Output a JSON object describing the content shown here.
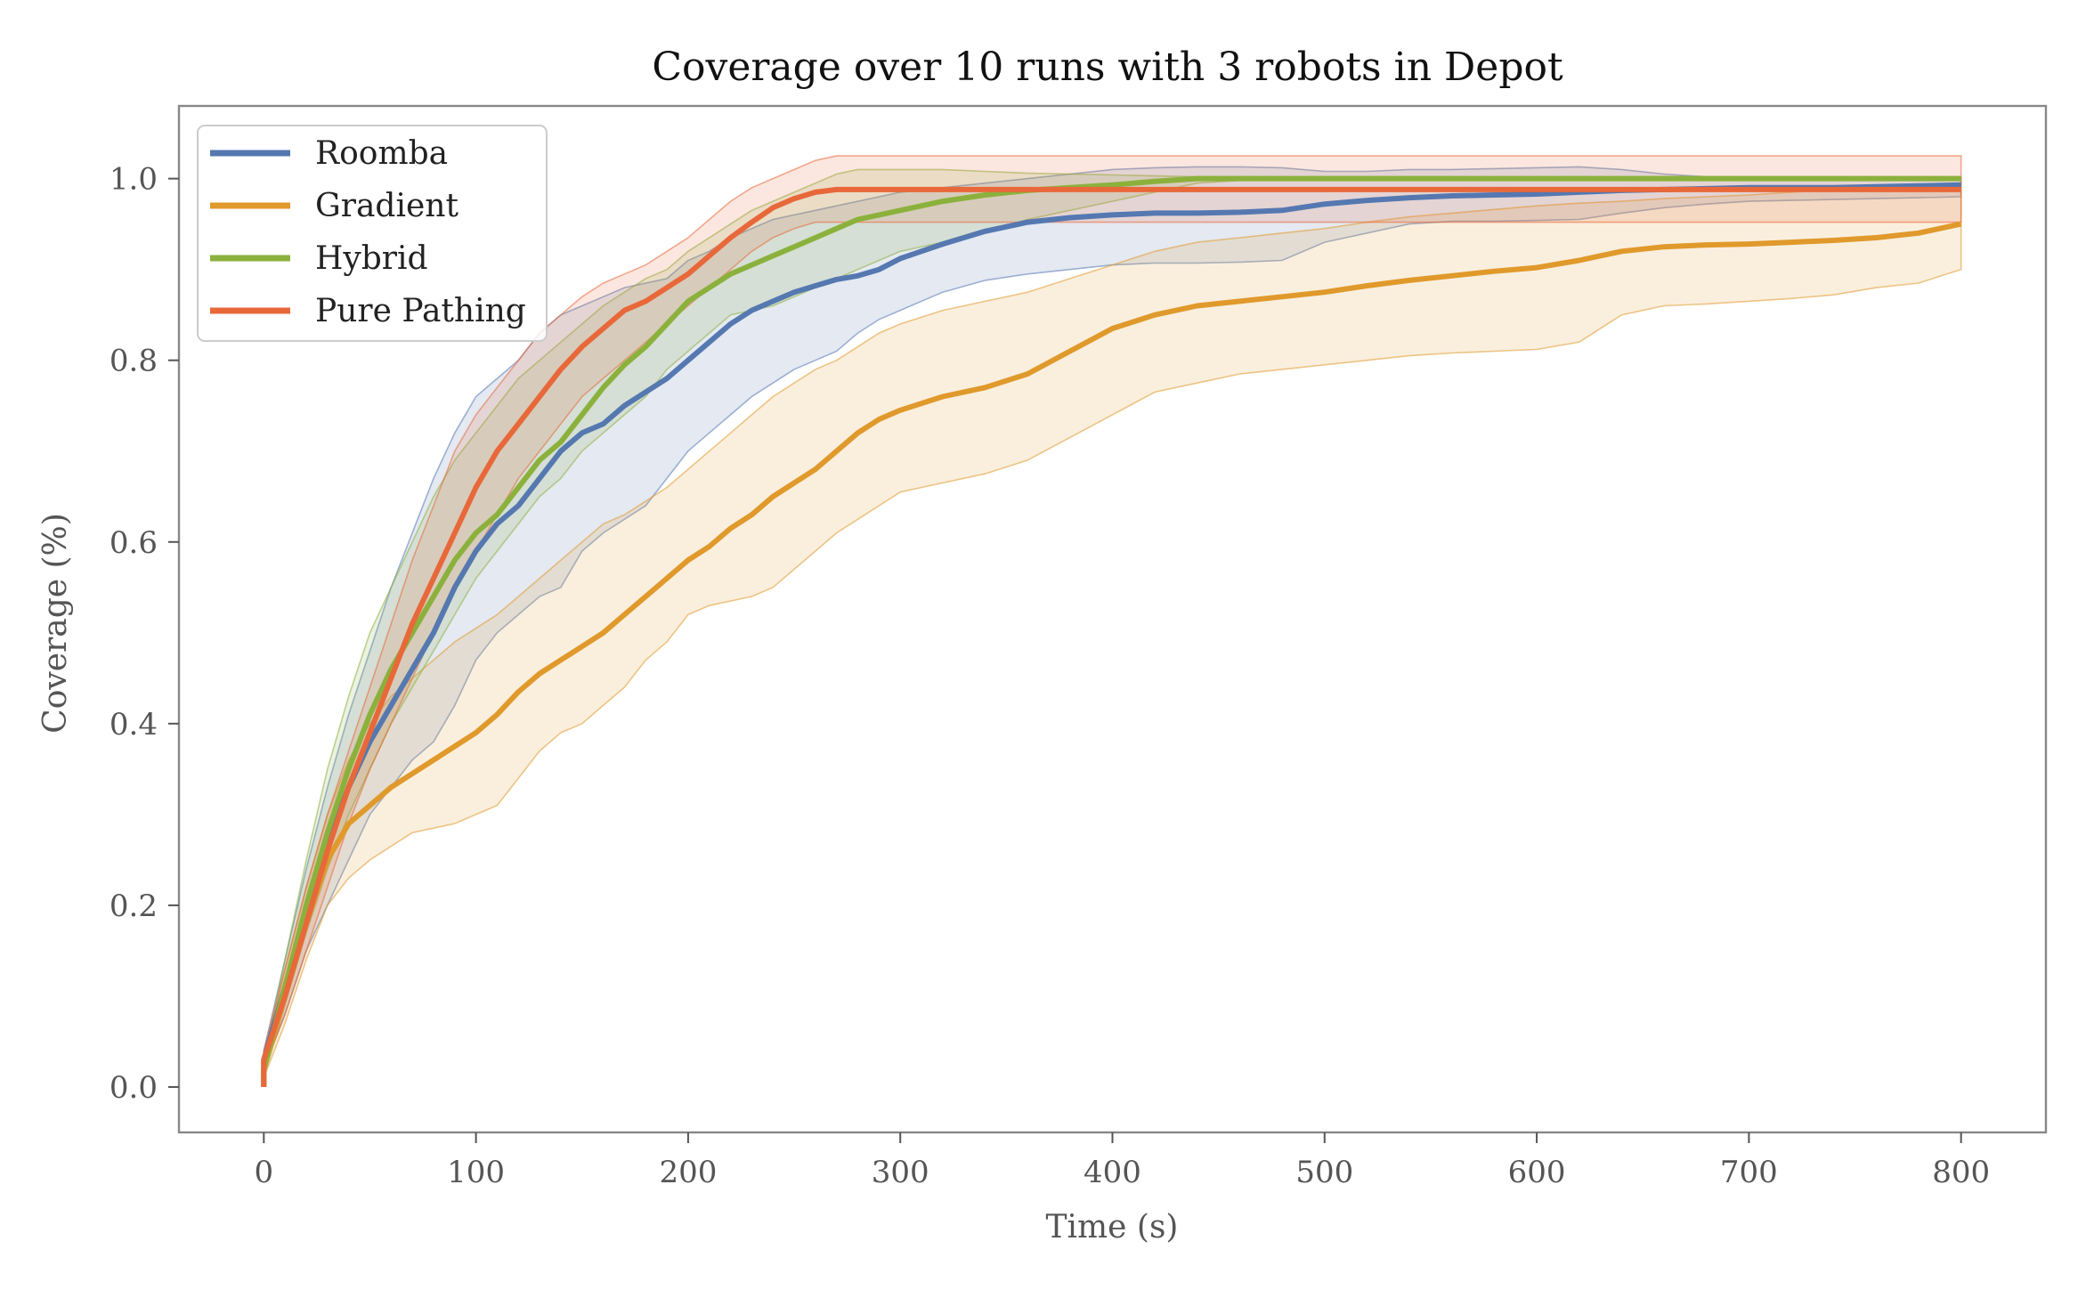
{
  "chart_data": {
    "type": "line",
    "title": "Coverage over 10 runs with 3 robots in Depot",
    "xlabel": "Time (s)",
    "ylabel": "Coverage (%)",
    "xlim": [
      -40,
      840
    ],
    "ylim": [
      -0.05,
      1.08
    ],
    "xticks": [
      0,
      100,
      200,
      300,
      400,
      500,
      600,
      700,
      800
    ],
    "yticks": [
      0.0,
      0.2,
      0.4,
      0.6,
      0.8,
      1.0
    ],
    "xtick_labels": [
      "0",
      "100",
      "200",
      "300",
      "400",
      "500",
      "600",
      "700",
      "800"
    ],
    "ytick_labels": [
      "0.0",
      "0.2",
      "0.4",
      "0.6",
      "0.8",
      "1.0"
    ],
    "grid": false,
    "legend_position": "top-left",
    "x": [
      0,
      10,
      20,
      30,
      40,
      50,
      60,
      70,
      80,
      90,
      100,
      110,
      120,
      130,
      140,
      150,
      160,
      170,
      180,
      190,
      200,
      210,
      220,
      230,
      240,
      250,
      260,
      270,
      280,
      290,
      300,
      320,
      340,
      360,
      380,
      400,
      420,
      440,
      460,
      480,
      500,
      520,
      540,
      560,
      580,
      600,
      620,
      640,
      660,
      680,
      700,
      720,
      740,
      760,
      780,
      800
    ],
    "series": [
      {
        "name": "Roomba",
        "color": "#5578b0",
        "mean": [
          0.03,
          0.11,
          0.19,
          0.27,
          0.33,
          0.38,
          0.42,
          0.46,
          0.5,
          0.55,
          0.59,
          0.62,
          0.64,
          0.67,
          0.7,
          0.72,
          0.73,
          0.75,
          0.765,
          0.78,
          0.8,
          0.82,
          0.84,
          0.855,
          0.865,
          0.875,
          0.882,
          0.889,
          0.893,
          0.9,
          0.912,
          0.928,
          0.942,
          0.952,
          0.957,
          0.96,
          0.962,
          0.962,
          0.963,
          0.965,
          0.972,
          0.976,
          0.979,
          0.981,
          0.982,
          0.983,
          0.985,
          0.987,
          0.988,
          0.989,
          0.99,
          0.99,
          0.99,
          0.991,
          0.992,
          0.993
        ],
        "upper": [
          0.04,
          0.14,
          0.24,
          0.33,
          0.41,
          0.48,
          0.55,
          0.61,
          0.67,
          0.72,
          0.76,
          0.78,
          0.8,
          0.83,
          0.85,
          0.86,
          0.87,
          0.88,
          0.885,
          0.89,
          0.91,
          0.92,
          0.935,
          0.945,
          0.955,
          0.96,
          0.965,
          0.97,
          0.975,
          0.98,
          0.985,
          0.99,
          0.995,
          1.0,
          1.005,
          1.01,
          1.012,
          1.013,
          1.013,
          1.012,
          1.008,
          1.008,
          1.01,
          1.01,
          1.011,
          1.012,
          1.013,
          1.01,
          1.005,
          1.002,
          1.0,
          1.0,
          1.0,
          1.0,
          1.0,
          1.0
        ],
        "lower": [
          0.02,
          0.08,
          0.15,
          0.2,
          0.25,
          0.3,
          0.33,
          0.36,
          0.38,
          0.42,
          0.47,
          0.5,
          0.52,
          0.54,
          0.55,
          0.59,
          0.61,
          0.625,
          0.64,
          0.67,
          0.7,
          0.72,
          0.74,
          0.76,
          0.775,
          0.79,
          0.8,
          0.81,
          0.83,
          0.845,
          0.855,
          0.875,
          0.888,
          0.895,
          0.9,
          0.905,
          0.907,
          0.907,
          0.908,
          0.91,
          0.93,
          0.94,
          0.95,
          0.953,
          0.953,
          0.954,
          0.955,
          0.962,
          0.968,
          0.972,
          0.975,
          0.976,
          0.977,
          0.978,
          0.979,
          0.98
        ]
      },
      {
        "name": "Gradient",
        "color": "#e0992b",
        "mean": [
          0.02,
          0.1,
          0.18,
          0.25,
          0.29,
          0.31,
          0.33,
          0.345,
          0.36,
          0.375,
          0.39,
          0.41,
          0.435,
          0.455,
          0.47,
          0.485,
          0.5,
          0.52,
          0.54,
          0.56,
          0.58,
          0.595,
          0.615,
          0.63,
          0.65,
          0.665,
          0.68,
          0.7,
          0.72,
          0.735,
          0.745,
          0.76,
          0.77,
          0.785,
          0.81,
          0.835,
          0.85,
          0.86,
          0.865,
          0.87,
          0.875,
          0.882,
          0.888,
          0.893,
          0.898,
          0.902,
          0.91,
          0.92,
          0.925,
          0.927,
          0.928,
          0.93,
          0.932,
          0.935,
          0.94,
          0.95
        ],
        "upper": [
          0.03,
          0.13,
          0.22,
          0.3,
          0.36,
          0.4,
          0.43,
          0.45,
          0.47,
          0.49,
          0.505,
          0.52,
          0.54,
          0.56,
          0.58,
          0.6,
          0.62,
          0.63,
          0.645,
          0.66,
          0.68,
          0.7,
          0.72,
          0.74,
          0.76,
          0.775,
          0.79,
          0.8,
          0.815,
          0.83,
          0.84,
          0.855,
          0.865,
          0.875,
          0.89,
          0.905,
          0.92,
          0.93,
          0.935,
          0.94,
          0.945,
          0.952,
          0.958,
          0.962,
          0.966,
          0.97,
          0.973,
          0.975,
          0.978,
          0.98,
          0.982,
          0.985,
          0.988,
          0.99,
          0.992,
          0.995
        ],
        "lower": [
          0.01,
          0.07,
          0.14,
          0.2,
          0.23,
          0.25,
          0.265,
          0.28,
          0.285,
          0.29,
          0.3,
          0.31,
          0.34,
          0.37,
          0.39,
          0.4,
          0.42,
          0.44,
          0.47,
          0.49,
          0.52,
          0.53,
          0.535,
          0.54,
          0.55,
          0.57,
          0.59,
          0.61,
          0.625,
          0.64,
          0.655,
          0.665,
          0.675,
          0.69,
          0.715,
          0.74,
          0.765,
          0.775,
          0.785,
          0.79,
          0.795,
          0.8,
          0.805,
          0.808,
          0.81,
          0.812,
          0.82,
          0.85,
          0.86,
          0.862,
          0.865,
          0.868,
          0.872,
          0.88,
          0.885,
          0.9
        ]
      },
      {
        "name": "Hybrid",
        "color": "#8bb13c",
        "mean": [
          0.02,
          0.11,
          0.2,
          0.28,
          0.35,
          0.41,
          0.46,
          0.5,
          0.54,
          0.58,
          0.61,
          0.63,
          0.66,
          0.69,
          0.71,
          0.74,
          0.77,
          0.795,
          0.815,
          0.84,
          0.865,
          0.88,
          0.895,
          0.905,
          0.915,
          0.925,
          0.935,
          0.945,
          0.955,
          0.96,
          0.965,
          0.975,
          0.982,
          0.987,
          0.99,
          0.993,
          0.997,
          1.0,
          1.0,
          1.0,
          1.0,
          1.0,
          1.0,
          1.0,
          1.0,
          1.0,
          1.0,
          1.0,
          1.0,
          1.0,
          1.0,
          1.0,
          1.0,
          1.0,
          1.0,
          1.0
        ],
        "upper": [
          0.03,
          0.14,
          0.25,
          0.35,
          0.43,
          0.5,
          0.55,
          0.6,
          0.65,
          0.69,
          0.72,
          0.75,
          0.78,
          0.8,
          0.82,
          0.84,
          0.86,
          0.875,
          0.89,
          0.9,
          0.92,
          0.935,
          0.95,
          0.965,
          0.975,
          0.985,
          0.995,
          1.005,
          1.01,
          1.01,
          1.01,
          1.01,
          1.008,
          1.006,
          1.005,
          1.004,
          1.003,
          1.002,
          1.002,
          1.002,
          1.002,
          1.002,
          1.002,
          1.002,
          1.002,
          1.002,
          1.002,
          1.002,
          1.002,
          1.002,
          1.002,
          1.002,
          1.002,
          1.002,
          1.002,
          1.002
        ],
        "lower": [
          0.01,
          0.09,
          0.17,
          0.24,
          0.3,
          0.35,
          0.4,
          0.44,
          0.48,
          0.52,
          0.56,
          0.59,
          0.62,
          0.65,
          0.67,
          0.7,
          0.72,
          0.74,
          0.76,
          0.79,
          0.81,
          0.83,
          0.85,
          0.855,
          0.86,
          0.87,
          0.88,
          0.89,
          0.9,
          0.91,
          0.92,
          0.93,
          0.94,
          0.955,
          0.965,
          0.975,
          0.985,
          0.995,
          0.998,
          0.998,
          0.998,
          0.998,
          0.998,
          0.998,
          0.998,
          0.998,
          0.998,
          0.998,
          0.998,
          0.998,
          0.998,
          0.998,
          0.998,
          0.998,
          0.998,
          0.998
        ]
      },
      {
        "name": "Pure Pathing",
        "color": "#e8683a",
        "mean": [
          0.03,
          0.1,
          0.18,
          0.26,
          0.33,
          0.39,
          0.45,
          0.51,
          0.56,
          0.61,
          0.66,
          0.7,
          0.73,
          0.76,
          0.79,
          0.815,
          0.835,
          0.855,
          0.865,
          0.88,
          0.895,
          0.915,
          0.935,
          0.952,
          0.968,
          0.978,
          0.985,
          0.988,
          0.988,
          0.988,
          0.988,
          0.988,
          0.988,
          0.988,
          0.988,
          0.988,
          0.988,
          0.988,
          0.988,
          0.988,
          0.988,
          0.988,
          0.988,
          0.988,
          0.988,
          0.988,
          0.988,
          0.988,
          0.988,
          0.988,
          0.988,
          0.988,
          0.988,
          0.988,
          0.988,
          0.988
        ],
        "upper": [
          0.04,
          0.13,
          0.22,
          0.3,
          0.37,
          0.44,
          0.51,
          0.58,
          0.64,
          0.7,
          0.74,
          0.77,
          0.8,
          0.83,
          0.85,
          0.87,
          0.885,
          0.895,
          0.905,
          0.92,
          0.935,
          0.955,
          0.975,
          0.99,
          1.0,
          1.01,
          1.02,
          1.025,
          1.025,
          1.025,
          1.025,
          1.025,
          1.025,
          1.025,
          1.025,
          1.025,
          1.025,
          1.025,
          1.025,
          1.025,
          1.025,
          1.025,
          1.025,
          1.025,
          1.025,
          1.025,
          1.025,
          1.025,
          1.025,
          1.025,
          1.025,
          1.025,
          1.025,
          1.025,
          1.025,
          1.025
        ],
        "lower": [
          0.02,
          0.08,
          0.15,
          0.22,
          0.29,
          0.35,
          0.4,
          0.45,
          0.5,
          0.55,
          0.59,
          0.63,
          0.67,
          0.7,
          0.73,
          0.76,
          0.78,
          0.8,
          0.82,
          0.84,
          0.86,
          0.88,
          0.9,
          0.92,
          0.935,
          0.945,
          0.952,
          0.952,
          0.952,
          0.952,
          0.952,
          0.952,
          0.952,
          0.952,
          0.952,
          0.952,
          0.952,
          0.952,
          0.952,
          0.952,
          0.952,
          0.952,
          0.952,
          0.952,
          0.952,
          0.952,
          0.952,
          0.952,
          0.952,
          0.952,
          0.952,
          0.952,
          0.952,
          0.952,
          0.952,
          0.952
        ]
      }
    ]
  }
}
